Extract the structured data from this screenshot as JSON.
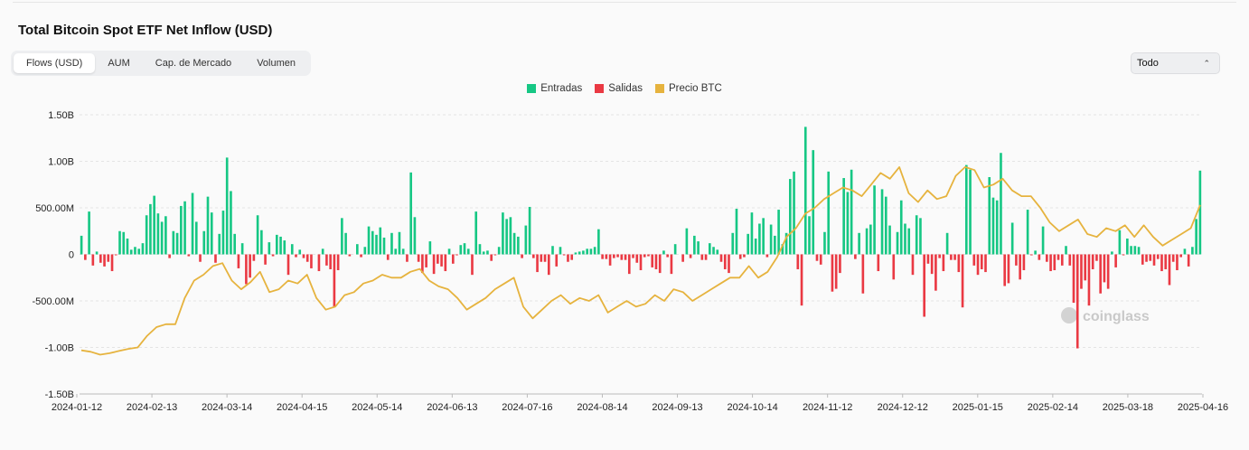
{
  "title": "Total Bitcoin Spot ETF Net Inflow (USD)",
  "tabs": [
    "Flows (USD)",
    "AUM",
    "Cap. de Mercado",
    "Volumen"
  ],
  "range_select": "Todo",
  "watermark": "coinglass",
  "colors": {
    "inflow": "#16c784",
    "outflow": "#ea3943",
    "price": "#e6b33e",
    "grid": "#e4e4e4",
    "axis": "#222222"
  },
  "chart_data": {
    "type": "bar",
    "legend": [
      "Entradas",
      "Salidas",
      "Precio BTC"
    ],
    "legend_position": "top-center",
    "y_unit": "USD",
    "ylim": [
      -1500000000,
      1500000000
    ],
    "yticks": [
      {
        "v": 1500000000,
        "label": "1.50B"
      },
      {
        "v": 1000000000,
        "label": "1.00B"
      },
      {
        "v": 500000000,
        "label": "500.00M"
      },
      {
        "v": 0,
        "label": "0"
      },
      {
        "v": -500000000,
        "label": "-500.00M"
      },
      {
        "v": -1000000000,
        "label": "-1.00B"
      },
      {
        "v": -1500000000,
        "label": "-1.50B"
      }
    ],
    "xticks": [
      "2024-01-12",
      "2024-02-13",
      "2024-03-14",
      "2024-04-15",
      "2024-05-14",
      "2024-06-13",
      "2024-07-16",
      "2024-08-14",
      "2024-09-13",
      "2024-10-14",
      "2024-11-12",
      "2024-12-12",
      "2025-01-15",
      "2025-02-14",
      "2025-03-18",
      "2025-04-16"
    ],
    "grid": true,
    "net_flow_millions": [
      200,
      -60,
      460,
      -120,
      30,
      -90,
      -130,
      -80,
      -180,
      -10,
      250,
      240,
      170,
      50,
      80,
      60,
      120,
      420,
      540,
      630,
      440,
      350,
      410,
      -40,
      250,
      230,
      520,
      570,
      -20,
      660,
      350,
      -80,
      250,
      620,
      450,
      -90,
      220,
      470,
      1040,
      680,
      220,
      -150,
      120,
      -320,
      -250,
      -70,
      420,
      260,
      -110,
      130,
      -20,
      210,
      190,
      150,
      -220,
      110,
      -30,
      50,
      -40,
      -80,
      -150,
      0,
      -180,
      60,
      -120,
      -160,
      -560,
      -170,
      390,
      230,
      -20,
      0,
      110,
      -30,
      80,
      300,
      250,
      210,
      290,
      180,
      -60,
      230,
      60,
      240,
      60,
      -80,
      880,
      400,
      -80,
      -200,
      -140,
      140,
      -210,
      -100,
      -130,
      -180,
      60,
      -100,
      -10,
      100,
      120,
      60,
      -220,
      460,
      110,
      30,
      40,
      -70,
      -10,
      80,
      450,
      380,
      400,
      230,
      190,
      -40,
      310,
      510,
      -40,
      -190,
      -80,
      -80,
      -220,
      90,
      -130,
      80,
      -10,
      -80,
      -60,
      20,
      30,
      40,
      60,
      60,
      80,
      270,
      -50,
      -50,
      -120,
      -40,
      -30,
      -60,
      -60,
      -210,
      -40,
      -90,
      -170,
      -30,
      -20,
      -140,
      -160,
      -200,
      40,
      -30,
      -210,
      110,
      0,
      -80,
      280,
      -40,
      200,
      140,
      -60,
      -60,
      120,
      80,
      50,
      -80,
      -160,
      -200,
      230,
      490,
      -50,
      -30,
      220,
      450,
      170,
      330,
      390,
      -30,
      320,
      200,
      480,
      110,
      230,
      810,
      890,
      -160,
      -550,
      1370,
      410,
      1120,
      -70,
      -110,
      240,
      890,
      -400,
      -370,
      -200,
      820,
      670,
      910,
      -50,
      230,
      -420,
      280,
      320,
      740,
      -180,
      700,
      620,
      310,
      -270,
      240,
      580,
      330,
      280,
      -220,
      420,
      390,
      -670,
      -100,
      -210,
      -390,
      -40,
      -180,
      230,
      -60,
      -60,
      -190,
      -570,
      960,
      910,
      -120,
      -220,
      -160,
      -190,
      830,
      610,
      580,
      1090,
      -340,
      -310,
      340,
      -120,
      -270,
      -170,
      480,
      -10,
      40,
      -60,
      300,
      -80,
      -180,
      -170,
      -60,
      -120,
      90,
      -120,
      -520,
      -1010,
      -370,
      -280,
      -550,
      -160,
      -70,
      -420,
      -300,
      -370,
      30,
      -140,
      260,
      -10,
      170,
      90,
      90,
      80,
      -110,
      -80,
      -70,
      -120,
      -50,
      -180,
      -160,
      -330,
      -80,
      -170,
      -30,
      60,
      -130,
      80,
      380,
      900
    ],
    "btc_price_axis_note": "secondary axis not labeled",
    "btc_price_series": [
      43000,
      42500,
      41500,
      42000,
      42800,
      43500,
      44000,
      48000,
      51000,
      52000,
      52000,
      61000,
      67000,
      69000,
      72000,
      73000,
      67000,
      64000,
      66500,
      70000,
      63000,
      64000,
      67000,
      66000,
      69000,
      61000,
      57000,
      58000,
      62000,
      63000,
      66000,
      67000,
      69000,
      68000,
      68000,
      70000,
      71000,
      67000,
      65000,
      64000,
      61000,
      57000,
      59000,
      61000,
      64000,
      66000,
      68000,
      58000,
      54000,
      57000,
      60000,
      62000,
      59000,
      61000,
      60000,
      62000,
      56000,
      58000,
      60000,
      58000,
      59000,
      62000,
      60000,
      64000,
      63000,
      60000,
      62000,
      64000,
      66000,
      68000,
      68000,
      72000,
      68000,
      70000,
      75000,
      82000,
      85000,
      90000,
      92000,
      95000,
      97000,
      99000,
      98000,
      96000,
      100000,
      104000,
      102000,
      106000,
      97000,
      94000,
      98000,
      95000,
      96000,
      103000,
      106000,
      105000,
      99000,
      100000,
      102000,
      98000,
      96000,
      96000,
      92000,
      87000,
      84000,
      86000,
      88000,
      83000,
      82000,
      85000,
      84000,
      86000,
      82000,
      86000,
      82000,
      79000,
      81000,
      83000,
      85000,
      93000
    ]
  }
}
